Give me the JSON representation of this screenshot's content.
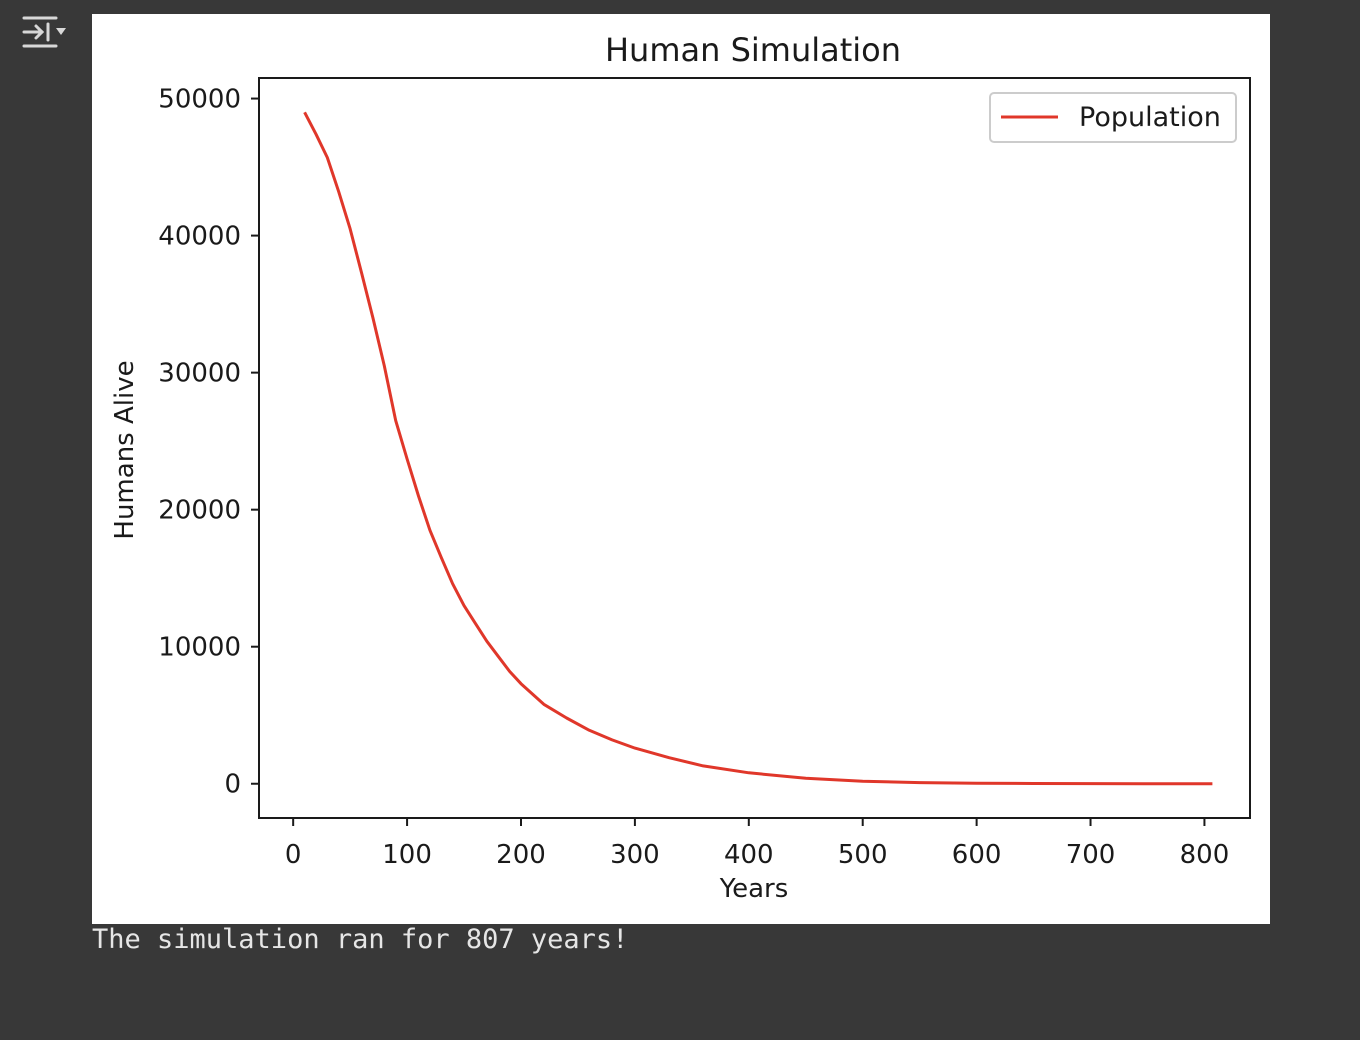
{
  "cell": {
    "toggle_icon": "output-collapse-icon",
    "stdout": "The simulation ran for 807 years!"
  },
  "colors": {
    "background": "#383838",
    "plot_background": "#ffffff",
    "series_line": "#e0372a",
    "stdout_text": "#e6e6e6"
  },
  "chart_data": {
    "type": "line",
    "title": "Human Simulation",
    "xlabel": "Years",
    "ylabel": "Humans Alive",
    "xlim": [
      -30,
      840
    ],
    "ylim": [
      -2500,
      51500
    ],
    "xticks": [
      0,
      100,
      200,
      300,
      400,
      500,
      600,
      700,
      800
    ],
    "yticks": [
      0,
      10000,
      20000,
      30000,
      40000,
      50000
    ],
    "grid": false,
    "legend": {
      "placement": "top-right",
      "entries": [
        "Population"
      ]
    },
    "series": [
      {
        "name": "Population",
        "color": "#e0372a",
        "x": [
          10,
          20,
          30,
          40,
          50,
          60,
          70,
          80,
          90,
          100,
          110,
          120,
          130,
          140,
          150,
          160,
          170,
          180,
          190,
          200,
          220,
          240,
          260,
          280,
          300,
          330,
          360,
          400,
          450,
          500,
          550,
          600,
          650,
          700,
          750,
          807
        ],
        "y": [
          49000,
          47400,
          45700,
          43200,
          40500,
          37300,
          34000,
          30500,
          26500,
          23700,
          21000,
          18500,
          16500,
          14600,
          13000,
          11700,
          10400,
          9300,
          8200,
          7300,
          5800,
          4800,
          3900,
          3200,
          2600,
          1900,
          1300,
          800,
          400,
          180,
          80,
          40,
          20,
          10,
          5,
          3
        ]
      }
    ]
  }
}
